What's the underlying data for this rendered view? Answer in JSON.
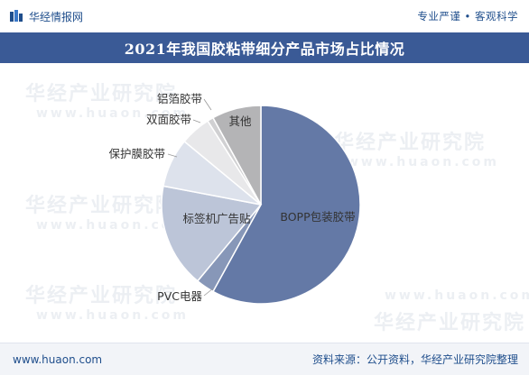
{
  "header": {
    "brand_name": "华经情报网",
    "slogan": "专业严谨 • 客观科学"
  },
  "title": "2021年我国胶粘带细分产品市场占比情况",
  "watermark": {
    "text": "华经产业研究院",
    "url": "www.huaon.com"
  },
  "footer": {
    "site": "www.huaon.com",
    "source": "资料来源：公开资料，华经产业研究院整理"
  },
  "colors": {
    "header_band": "#3a5a96",
    "text_brand": "#1f4e8c"
  },
  "chart_data": {
    "type": "pie",
    "start_angle_deg": 0,
    "direction": "clockwise",
    "slices": [
      {
        "label": "BOPP包装胶带",
        "value": 58,
        "color": "#6479a6"
      },
      {
        "label": "PVC电器",
        "value": 3,
        "color": "#8797b8"
      },
      {
        "label": "标签机广告贴",
        "value": 17,
        "color": "#bcc5d8"
      },
      {
        "label": "保护膜胶带",
        "value": 8,
        "color": "#dde2ec"
      },
      {
        "label": "双面胶带",
        "value": 5,
        "color": "#e8e8ea"
      },
      {
        "label": "铝箔胶带",
        "value": 1,
        "color": "#d0d0d2"
      },
      {
        "label": "其他",
        "value": 8,
        "color": "#b4b4b6"
      }
    ]
  }
}
